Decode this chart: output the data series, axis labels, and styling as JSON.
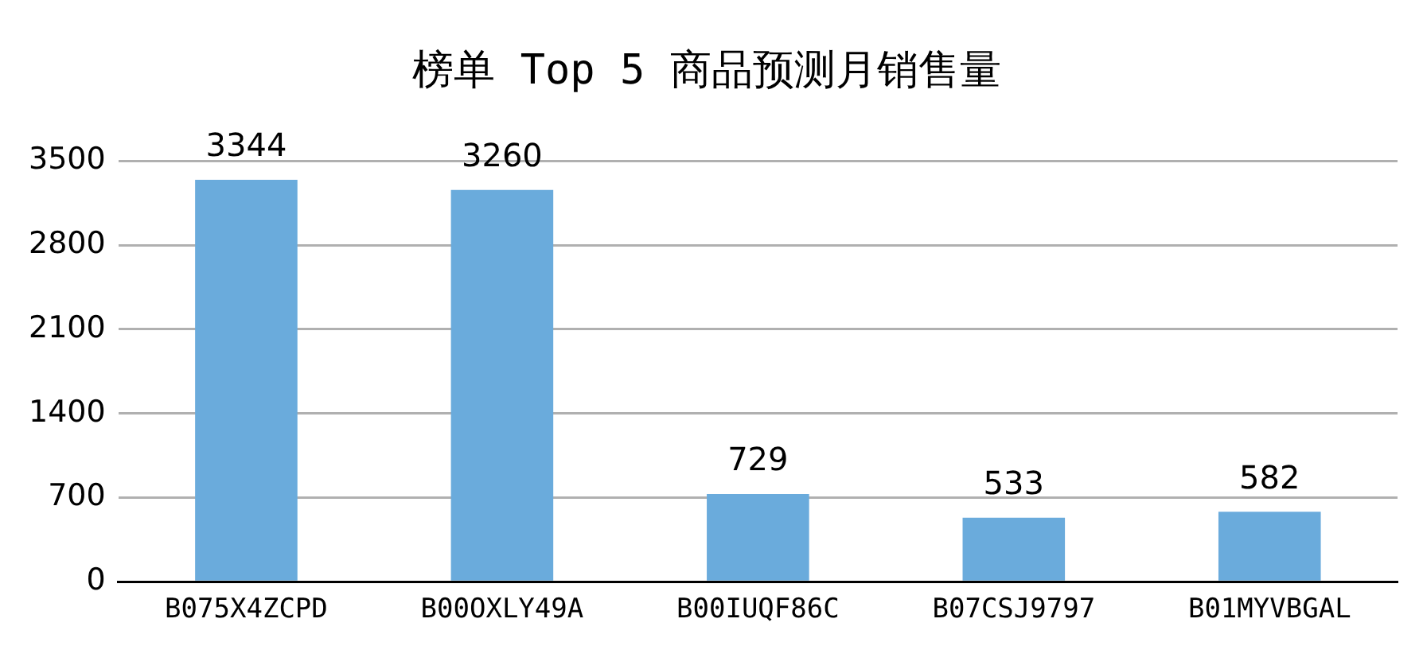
{
  "chart_data": {
    "type": "bar",
    "title": "榜单 Top 5 商品预测月销售量",
    "categories": [
      "B075X4ZCPD",
      "B00OXLY49A",
      "B00IUQF86C",
      "B07CSJ9797",
      "B01MYVBGAL"
    ],
    "values": [
      3344,
      3260,
      729,
      533,
      582
    ],
    "color": "#6aabdc",
    "ylim": [
      0,
      3500
    ],
    "yticks": [
      0,
      700,
      1400,
      2100,
      2800,
      3500
    ],
    "grid": "y",
    "data_labels": true
  }
}
